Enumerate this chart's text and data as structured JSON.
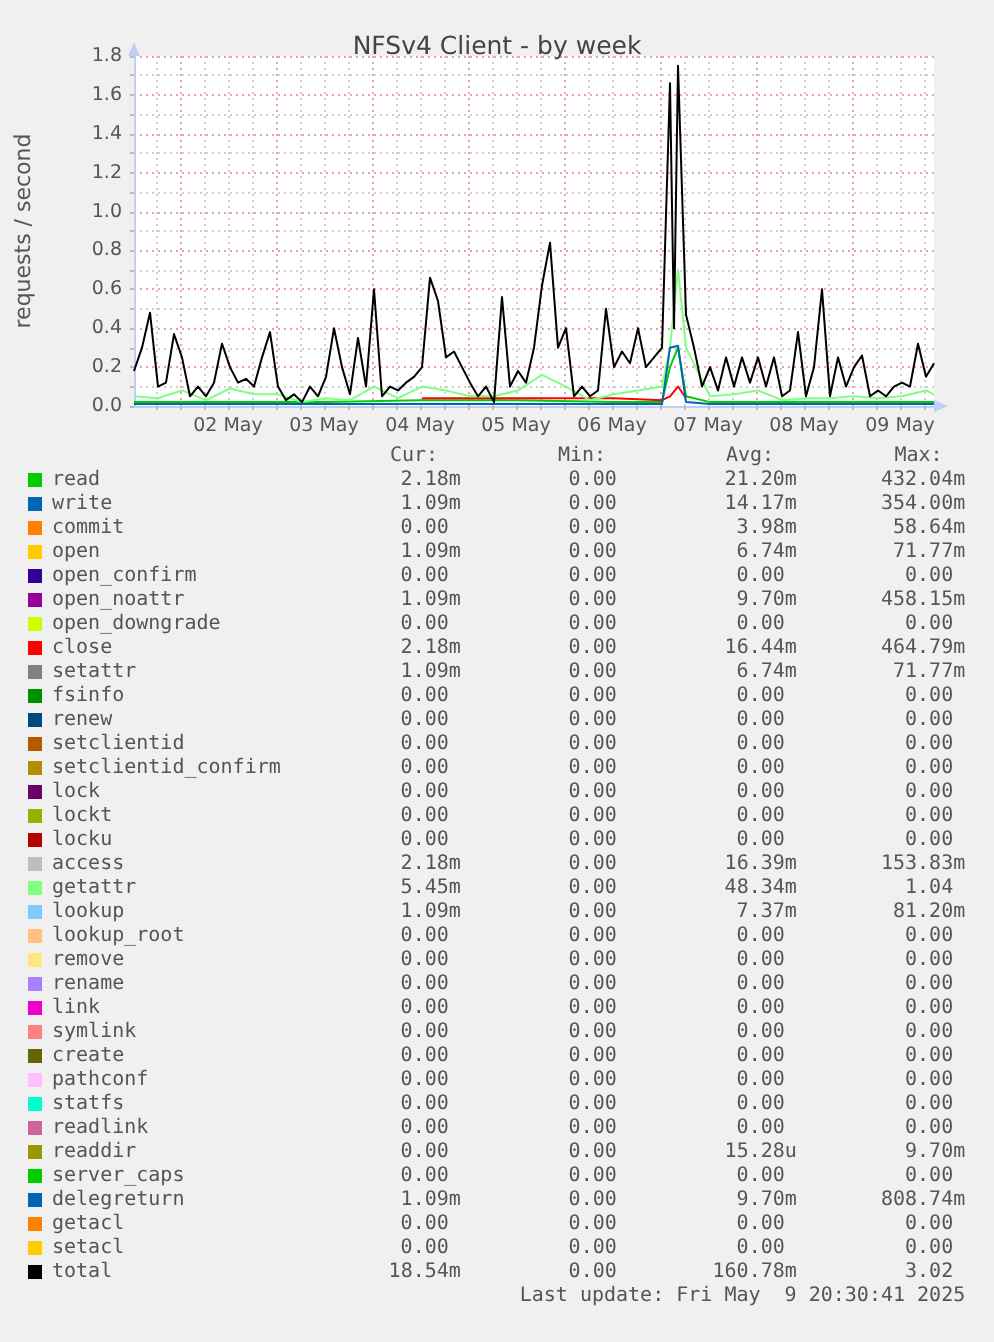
{
  "chart_data": {
    "type": "line",
    "title": "NFSv4 Client - by week",
    "ylabel": "requests / second",
    "xlim": [
      "2025-05-01T12:30",
      "2025-05-09T20:30"
    ],
    "xticks": [
      {
        "value": "2025-05-01T18:00",
        "label": null
      },
      {
        "value": "2025-05-02T00:00",
        "label": null
      },
      {
        "value": "2025-05-02T06:00",
        "label": null
      },
      {
        "value": "2025-05-02T12:00",
        "label": "02 May"
      },
      {
        "value": "2025-05-02T18:00",
        "label": null
      },
      {
        "value": "2025-05-03T00:00",
        "label": null
      },
      {
        "value": "2025-05-03T06:00",
        "label": null
      },
      {
        "value": "2025-05-03T12:00",
        "label": "03 May"
      },
      {
        "value": "2025-05-03T18:00",
        "label": null
      },
      {
        "value": "2025-05-04T00:00",
        "label": null
      },
      {
        "value": "2025-05-04T06:00",
        "label": null
      },
      {
        "value": "2025-05-04T12:00",
        "label": "04 May"
      },
      {
        "value": "2025-05-04T18:00",
        "label": null
      },
      {
        "value": "2025-05-05T00:00",
        "label": null
      },
      {
        "value": "2025-05-05T06:00",
        "label": null
      },
      {
        "value": "2025-05-05T12:00",
        "label": "05 May"
      },
      {
        "value": "2025-05-05T18:00",
        "label": null
      },
      {
        "value": "2025-05-06T00:00",
        "label": null
      },
      {
        "value": "2025-05-06T06:00",
        "label": null
      },
      {
        "value": "2025-05-06T12:00",
        "label": "06 May"
      },
      {
        "value": "2025-05-06T18:00",
        "label": null
      },
      {
        "value": "2025-05-07T00:00",
        "label": null
      },
      {
        "value": "2025-05-07T06:00",
        "label": null
      },
      {
        "value": "2025-05-07T12:00",
        "label": "07 May"
      },
      {
        "value": "2025-05-07T18:00",
        "label": null
      },
      {
        "value": "2025-05-08T00:00",
        "label": null
      },
      {
        "value": "2025-05-08T06:00",
        "label": null
      },
      {
        "value": "2025-05-08T12:00",
        "label": "08 May"
      },
      {
        "value": "2025-05-08T18:00",
        "label": null
      },
      {
        "value": "2025-05-09T00:00",
        "label": null
      },
      {
        "value": "2025-05-09T06:00",
        "label": null
      },
      {
        "value": "2025-05-09T12:00",
        "label": "09 May"
      },
      {
        "value": "2025-05-09T18:00",
        "label": null
      }
    ],
    "ylim": [
      0,
      1.8
    ],
    "yticks": [
      {
        "value": 0,
        "label": "0.0"
      },
      {
        "value": 0.1,
        "label": null
      },
      0.2,
      {
        "value": 0.3,
        "label": null
      },
      0.4,
      {
        "value": 0.5,
        "label": null
      },
      0.6,
      {
        "value": 0.7,
        "label": null
      },
      0.8,
      {
        "value": 0.9,
        "label": null
      },
      {
        "value": 1,
        "label": "1.0"
      },
      {
        "value": 1.1,
        "label": null
      },
      1.2,
      {
        "value": 1.3,
        "label": null
      },
      1.4,
      {
        "value": 1.5,
        "label": null
      },
      1.6,
      {
        "value": 1.7,
        "label": null
      },
      1.8
    ],
    "grid": true,
    "legend": "bottom",
    "series": [
      {
        "name": "read",
        "color": "#00cc00",
        "x": [
          "2025-05-01T12:30",
          "2025-05-02T12:30",
          "2025-05-03T12:30",
          "2025-05-04T12:30",
          "2025-05-05T12:30",
          "2025-05-06T12:30",
          "2025-05-07T00:30",
          "2025-05-07T02:30",
          "2025-05-07T04:30",
          "2025-05-07T06:30",
          "2025-05-07T12:30",
          "2025-05-08T12:30",
          "2025-05-09T12:30",
          "2025-05-09T20:30"
        ],
        "values": [
          0.02,
          0.02,
          0.02,
          0.03,
          0.03,
          0.02,
          0.02,
          0.2,
          0.3,
          0.05,
          0.02,
          0.02,
          0.02,
          0.02
        ]
      },
      {
        "name": "write",
        "color": "#0066b3"
      },
      {
        "name": "commit",
        "color": "#ff8000"
      },
      {
        "name": "open",
        "color": "#ffcc00"
      },
      {
        "name": "open_confirm",
        "color": "#330099"
      },
      {
        "name": "open_noattr",
        "color": "#990099"
      },
      {
        "name": "open_downgrade",
        "color": "#ccff00"
      },
      {
        "name": "close",
        "color": "#ff0000",
        "x": [
          "2025-05-04T12:30",
          "2025-05-05T12:30",
          "2025-05-06T12:30",
          "2025-05-07T00:30",
          "2025-05-07T02:30",
          "2025-05-07T04:30",
          "2025-05-07T06:30"
        ],
        "values": [
          0.04,
          0.04,
          0.04,
          0.03,
          0.05,
          0.1,
          0.04
        ]
      },
      {
        "name": "setattr",
        "color": "#808080"
      },
      {
        "name": "fsinfo",
        "color": "#008f00"
      },
      {
        "name": "renew",
        "color": "#00487d"
      },
      {
        "name": "setclientid",
        "color": "#b35a00"
      },
      {
        "name": "setclientid_confirm",
        "color": "#b38f00"
      },
      {
        "name": "lock",
        "color": "#6b006b"
      },
      {
        "name": "lockt",
        "color": "#8fb300"
      },
      {
        "name": "locku",
        "color": "#b30000"
      },
      {
        "name": "access",
        "color": "#bebebe"
      },
      {
        "name": "getattr",
        "color": "#80ff80",
        "x": [
          "2025-05-01T12:30",
          "2025-05-01T18:30",
          "2025-05-02T00:30",
          "2025-05-02T06:30",
          "2025-05-02T12:30",
          "2025-05-02T18:30",
          "2025-05-03T00:30",
          "2025-05-03T06:30",
          "2025-05-03T12:30",
          "2025-05-03T18:30",
          "2025-05-04T00:30",
          "2025-05-04T06:30",
          "2025-05-04T12:30",
          "2025-05-04T18:30",
          "2025-05-05T00:30",
          "2025-05-05T06:30",
          "2025-05-05T12:30",
          "2025-05-05T18:30",
          "2025-05-06T00:30",
          "2025-05-06T06:30",
          "2025-05-06T12:30",
          "2025-05-06T18:30",
          "2025-05-07T00:30",
          "2025-05-07T02:30",
          "2025-05-07T04:30",
          "2025-05-07T06:30",
          "2025-05-07T12:30",
          "2025-05-07T18:30",
          "2025-05-08T00:30",
          "2025-05-08T06:30",
          "2025-05-08T12:30",
          "2025-05-08T18:30",
          "2025-05-09T00:30",
          "2025-05-09T06:30",
          "2025-05-09T12:30",
          "2025-05-09T18:30",
          "2025-05-09T20:30"
        ],
        "values": [
          0.05,
          0.04,
          0.08,
          0.03,
          0.09,
          0.06,
          0.06,
          0.02,
          0.04,
          0.03,
          0.1,
          0.04,
          0.1,
          0.08,
          0.05,
          0.05,
          0.08,
          0.16,
          0.1,
          0.03,
          0.06,
          0.08,
          0.1,
          0.3,
          0.7,
          0.3,
          0.05,
          0.06,
          0.08,
          0.03,
          0.04,
          0.04,
          0.05,
          0.04,
          0.05,
          0.08,
          0.06
        ]
      },
      {
        "name": "lookup",
        "color": "#80c9ff"
      },
      {
        "name": "lookup_root",
        "color": "#ffc080"
      },
      {
        "name": "remove",
        "color": "#ffe680"
      },
      {
        "name": "rename",
        "color": "#aa80ff"
      },
      {
        "name": "link",
        "color": "#ee00cc"
      },
      {
        "name": "symlink",
        "color": "#ff8080"
      },
      {
        "name": "create",
        "color": "#666600"
      },
      {
        "name": "pathconf",
        "color": "#ffbfff"
      },
      {
        "name": "statfs",
        "color": "#00ffcc"
      },
      {
        "name": "readlink",
        "color": "#cc6699"
      },
      {
        "name": "readdir",
        "color": "#999900"
      },
      {
        "name": "server_caps",
        "color": "#00cc00"
      },
      {
        "name": "delegreturn",
        "color": "#0066b3",
        "x": [
          "2025-05-01T12:30",
          "2025-05-02T12:30",
          "2025-05-03T12:30",
          "2025-05-04T12:30",
          "2025-05-05T12:30",
          "2025-05-06T12:30",
          "2025-05-07T00:30",
          "2025-05-07T02:30",
          "2025-05-07T04:30",
          "2025-05-07T06:30",
          "2025-05-07T12:30",
          "2025-05-08T12:30",
          "2025-05-09T12:30",
          "2025-05-09T20:30"
        ],
        "values": [
          0.01,
          0.01,
          0.01,
          0.01,
          0.01,
          0.01,
          0.01,
          0.3,
          0.31,
          0.02,
          0.01,
          0.01,
          0.01,
          0.01
        ]
      },
      {
        "name": "getacl",
        "color": "#ff8000"
      },
      {
        "name": "setacl",
        "color": "#ffcc00"
      },
      {
        "name": "total",
        "color": "#000000",
        "x": [
          "2025-05-01T12:30",
          "2025-05-01T14:30",
          "2025-05-01T16:30",
          "2025-05-01T18:30",
          "2025-05-01T20:30",
          "2025-05-01T22:30",
          "2025-05-02T00:30",
          "2025-05-02T02:30",
          "2025-05-02T04:30",
          "2025-05-02T06:30",
          "2025-05-02T08:30",
          "2025-05-02T10:30",
          "2025-05-02T12:30",
          "2025-05-02T14:30",
          "2025-05-02T16:30",
          "2025-05-02T18:30",
          "2025-05-02T20:30",
          "2025-05-02T22:30",
          "2025-05-03T00:30",
          "2025-05-03T02:30",
          "2025-05-03T04:30",
          "2025-05-03T06:30",
          "2025-05-03T08:30",
          "2025-05-03T10:30",
          "2025-05-03T12:30",
          "2025-05-03T14:30",
          "2025-05-03T16:30",
          "2025-05-03T18:30",
          "2025-05-03T20:30",
          "2025-05-03T22:30",
          "2025-05-04T00:30",
          "2025-05-04T02:30",
          "2025-05-04T04:30",
          "2025-05-04T06:30",
          "2025-05-04T08:30",
          "2025-05-04T10:30",
          "2025-05-04T12:30",
          "2025-05-04T14:30",
          "2025-05-04T16:30",
          "2025-05-04T18:30",
          "2025-05-04T20:30",
          "2025-05-04T22:30",
          "2025-05-05T00:30",
          "2025-05-05T02:30",
          "2025-05-05T04:30",
          "2025-05-05T06:30",
          "2025-05-05T08:30",
          "2025-05-05T10:30",
          "2025-05-05T12:30",
          "2025-05-05T14:30",
          "2025-05-05T16:30",
          "2025-05-05T18:30",
          "2025-05-05T20:30",
          "2025-05-05T22:30",
          "2025-05-06T00:30",
          "2025-05-06T02:30",
          "2025-05-06T04:30",
          "2025-05-06T06:30",
          "2025-05-06T08:30",
          "2025-05-06T10:30",
          "2025-05-06T12:30",
          "2025-05-06T14:30",
          "2025-05-06T16:30",
          "2025-05-06T18:30",
          "2025-05-06T20:30",
          "2025-05-06T22:30",
          "2025-05-07T00:30",
          "2025-05-07T02:30",
          "2025-05-07T03:30",
          "2025-05-07T04:30",
          "2025-05-07T06:30",
          "2025-05-07T08:30",
          "2025-05-07T10:30",
          "2025-05-07T12:30",
          "2025-05-07T14:30",
          "2025-05-07T16:30",
          "2025-05-07T18:30",
          "2025-05-07T20:30",
          "2025-05-07T22:30",
          "2025-05-08T00:30",
          "2025-05-08T02:30",
          "2025-05-08T04:30",
          "2025-05-08T06:30",
          "2025-05-08T08:30",
          "2025-05-08T10:30",
          "2025-05-08T12:30",
          "2025-05-08T14:30",
          "2025-05-08T16:30",
          "2025-05-08T18:30",
          "2025-05-08T20:30",
          "2025-05-08T22:30",
          "2025-05-09T00:30",
          "2025-05-09T02:30",
          "2025-05-09T04:30",
          "2025-05-09T06:30",
          "2025-05-09T08:30",
          "2025-05-09T10:30",
          "2025-05-09T12:30",
          "2025-05-09T14:30",
          "2025-05-09T16:30",
          "2025-05-09T18:30",
          "2025-05-09T20:30"
        ],
        "values": [
          0.18,
          0.3,
          0.48,
          0.1,
          0.12,
          0.37,
          0.25,
          0.05,
          0.1,
          0.05,
          0.12,
          0.32,
          0.2,
          0.12,
          0.14,
          0.1,
          0.25,
          0.38,
          0.1,
          0.03,
          0.06,
          0.02,
          0.1,
          0.05,
          0.15,
          0.4,
          0.2,
          0.06,
          0.35,
          0.1,
          0.6,
          0.05,
          0.1,
          0.08,
          0.12,
          0.15,
          0.2,
          0.66,
          0.54,
          0.25,
          0.28,
          0.2,
          0.12,
          0.05,
          0.1,
          0.02,
          0.56,
          0.1,
          0.18,
          0.12,
          0.3,
          0.62,
          0.84,
          0.3,
          0.4,
          0.05,
          0.1,
          0.05,
          0.08,
          0.5,
          0.2,
          0.28,
          0.22,
          0.4,
          0.2,
          0.25,
          0.3,
          1.66,
          0.4,
          1.75,
          0.47,
          0.3,
          0.1,
          0.2,
          0.08,
          0.25,
          0.1,
          0.25,
          0.12,
          0.25,
          0.1,
          0.25,
          0.05,
          0.08,
          0.38,
          0.05,
          0.2,
          0.6,
          0.05,
          0.25,
          0.1,
          0.2,
          0.26,
          0.05,
          0.08,
          0.05,
          0.1,
          0.12,
          0.1,
          0.32,
          0.15,
          0.22
        ]
      }
    ],
    "annotations": [
      "Cur:",
      "Min:",
      "Avg:",
      "Max:",
      "2.18m",
      "0.00",
      "21.20m",
      "432.04m",
      "1.09m",
      "0.00",
      "14.17m",
      "354.00m",
      "0.00",
      "0.00",
      "3.98m",
      "58.64m",
      "1.09m",
      "0.00",
      "6.74m",
      "71.77m",
      "0.00",
      "0.00",
      "0.00",
      "0.00",
      "1.09m",
      "0.00",
      "9.70m",
      "458.15m",
      "0.00",
      "0.00",
      "0.00",
      "0.00",
      "2.18m",
      "0.00",
      "16.44m",
      "464.79m",
      "1.09m",
      "0.00",
      "6.74m",
      "71.77m",
      "0.00",
      "0.00",
      "0.00",
      "0.00",
      "0.00",
      "0.00",
      "0.00",
      "0.00",
      "0.00",
      "0.00",
      "0.00",
      "0.00",
      "0.00",
      "0.00",
      "0.00",
      "0.00",
      "0.00",
      "0.00",
      "0.00",
      "0.00",
      "0.00",
      "0.00",
      "0.00",
      "0.00",
      "0.00",
      "0.00",
      "0.00",
      "0.00",
      "2.18m",
      "0.00",
      "16.39m",
      "153.83m",
      "5.45m",
      "0.00",
      "48.34m",
      "1.04",
      "1.09m",
      "0.00",
      "7.37m",
      "81.20m",
      "0.00",
      "0.00",
      "0.00",
      "0.00",
      "0.00",
      "0.00",
      "0.00",
      "0.00",
      "0.00",
      "0.00",
      "0.00",
      "0.00",
      "0.00",
      "0.00",
      "0.00",
      "0.00",
      "0.00",
      "0.00",
      "0.00",
      "0.00",
      "0.00",
      "0.00",
      "0.00",
      "0.00",
      "0.00",
      "0.00",
      "0.00",
      "0.00",
      "0.00",
      "0.00",
      "0.00",
      "0.00",
      "0.00",
      "0.00",
      "0.00",
      "0.00",
      "0.00",
      "0.00",
      "15.28u",
      "9.70m",
      "0.00",
      "0.00",
      "0.00",
      "0.00",
      "1.09m",
      "0.00",
      "9.70m",
      "808.74m",
      "0.00",
      "0.00",
      "0.00",
      "0.00",
      "0.00",
      "0.00",
      "0.00",
      "0.00",
      "18.54m",
      "0.00",
      "160.78m",
      "3.02",
      "Last update: Fri May  9 20:30:41 2025"
    ]
  }
}
